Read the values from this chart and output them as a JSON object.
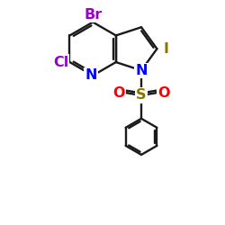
{
  "bg_color": "#ffffff",
  "bond_color": "#1a1a1a",
  "bond_width": 1.7,
  "Br_color": "#9900cc",
  "Cl_color": "#9900cc",
  "N_color": "#0000ff",
  "S_color": "#8b7500",
  "O_color": "#ff0000",
  "I_color": "#8b7500",
  "figsize": [
    2.5,
    2.5
  ],
  "dpi": 100,
  "xlim": [
    0.0,
    10.0
  ],
  "ylim": [
    -6.0,
    7.0
  ]
}
